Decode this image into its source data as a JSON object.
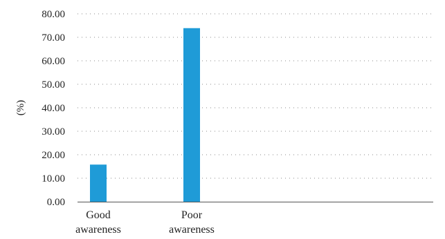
{
  "chart_data": {
    "type": "bar",
    "categories": [
      "Good awareness",
      "Poor awareness"
    ],
    "category_lines": [
      [
        "Good",
        "awareness"
      ],
      [
        "Poor",
        "awareness"
      ]
    ],
    "values": [
      15.8,
      73.9
    ],
    "ylabel": "(%)",
    "ylim": [
      0,
      80
    ],
    "yticks": [
      0,
      10,
      20,
      30,
      40,
      50,
      60,
      70,
      80
    ],
    "ytick_labels": [
      "0.00",
      "10.00",
      "20.00",
      "30.00",
      "40.00",
      "50.00",
      "60.00",
      "70.00",
      "80.00"
    ],
    "grid": true,
    "bar_color": "#1f9bd7"
  }
}
